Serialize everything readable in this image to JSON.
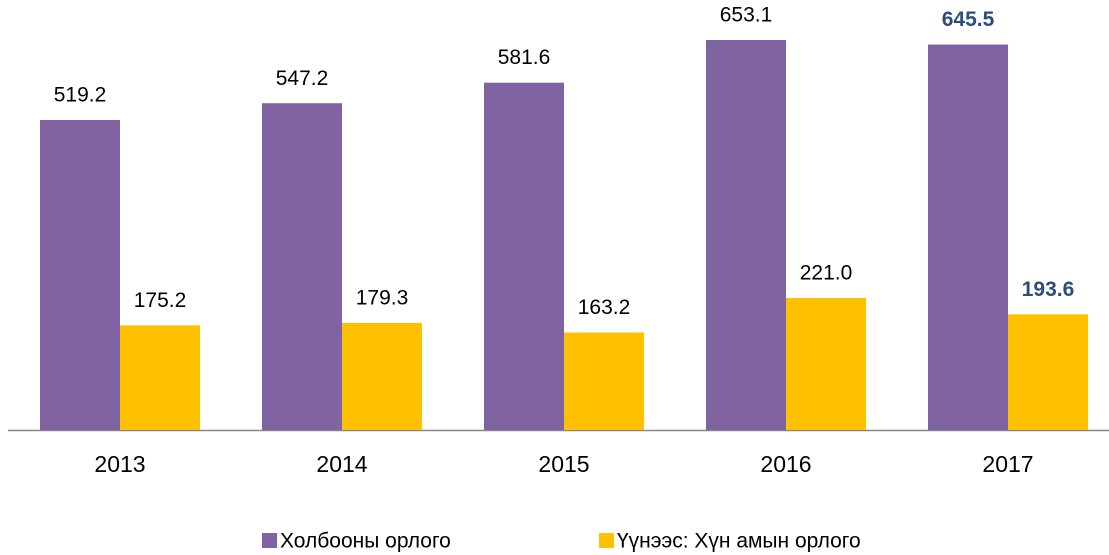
{
  "chart_data": {
    "type": "bar",
    "categories": [
      "2013",
      "2014",
      "2015",
      "2016",
      "2017"
    ],
    "series": [
      {
        "name": "Холбооны орлого",
        "color": "#8064a2",
        "values": [
          519.2,
          547.2,
          581.6,
          653.1,
          645.5
        ],
        "value_labels": [
          "519.2",
          "547.2",
          "581.6",
          "653.1",
          "645.5"
        ]
      },
      {
        "name": "Үүнээс: Хүн амын орлого",
        "color": "#ffc000",
        "values": [
          175.2,
          179.3,
          163.2,
          221.0,
          193.6
        ],
        "value_labels": [
          "175.2",
          "179.3",
          "163.2",
          "221.0",
          "193.6"
        ]
      }
    ],
    "legend": "bottom"
  }
}
